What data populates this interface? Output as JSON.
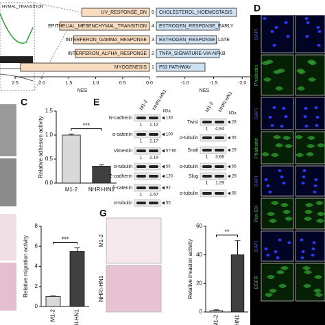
{
  "gsea": {
    "title": "HYMAL_TRANSITION"
  },
  "nes_chart": {
    "ranks": [
      5,
      4,
      3,
      2,
      1
    ],
    "left": {
      "axis_label": "NES",
      "categories": [
        "UV_RESPONSE_DN",
        "EPITHELIAL_MESENCHYMAL_TRANSITION",
        "INTERFERON_GAMMA_RESPONSE",
        "INTERFERON_ALPHA_RESPONSE",
        "MYOGENESIS"
      ],
      "values": [
        1.26,
        1.67,
        1.41,
        1.38,
        2.4
      ],
      "color": "#f9dcc0",
      "xlim": [
        2.5,
        0
      ],
      "xticks": [
        2.5,
        {
          "value": 2,
          "label": "2.0"
        },
        1.5,
        {
          "value": 1,
          "label": "1.0"
        },
        0.5,
        {
          "value": 0,
          "label": "0.0"
        }
      ]
    },
    "right": {
      "axis_label": "NES",
      "categories": [
        "CHOLESTEROL_HOEMOSTASIS",
        "ESTROGEN_RESPONSE_EARLY",
        "ESTROGEN_RESPONSE_LATE",
        "TNFA_SIGNATURE-VIA-NFKB",
        "P53 PATHWAY"
      ],
      "values": [
        -1.9,
        -1.6,
        -1.55,
        -1.6,
        -1.35
      ],
      "color": "#cfe2f3",
      "xlim": [
        -0.5,
        -2.2
      ],
      "xticks": [
        {
          "value": -1,
          "label": "-1.0"
        },
        -1.5,
        {
          "value": -2,
          "label": "-2.0"
        }
      ]
    }
  },
  "panel_labels": {
    "c": "C",
    "d": "D",
    "e": "E",
    "g": "G"
  },
  "adhesion_chart": {
    "y_label": "Relative adhesion activity",
    "categories": [
      "M1-2",
      "NHRI-HN1"
    ],
    "values": [
      1.0,
      0.35
    ],
    "errors": [
      0.02,
      0.03
    ],
    "colors": [
      "#d9d9d9",
      "#404040"
    ],
    "significance": "***",
    "ylim": [
      0,
      1.5
    ],
    "yticks": [
      {
        "value": 0,
        "label": "0.0"
      },
      0.5,
      {
        "value": 1,
        "label": "1.0"
      },
      1.5
    ]
  },
  "migration_chart": {
    "y_label": "Relative migration activity",
    "categories": [
      "M1-2",
      "NHRI-HN1"
    ],
    "values": [
      1,
      5.5
    ],
    "errors": [
      0.05,
      0.35
    ],
    "colors": [
      "#d9d9d9",
      "#404040"
    ],
    "significance": "***",
    "ylim": [
      0,
      8
    ],
    "yticks": [
      0,
      2,
      4,
      6,
      8
    ]
  },
  "invasion_chart": {
    "y_label": "Relative invasion activity",
    "categories": [
      "M1-2",
      "NHRI-HN1"
    ],
    "values": [
      1,
      40
    ],
    "errors": [
      0.5,
      10
    ],
    "colors": [
      "#d9d9d9",
      "#404040"
    ],
    "significance": "**",
    "ylim": [
      0,
      60
    ],
    "yticks": [
      0,
      20,
      40,
      60
    ]
  },
  "blot_left": {
    "lanes": [
      "M1-2",
      "NHRI-HN1"
    ],
    "unit": "kDa",
    "rows": [
      {
        "name": "N-cadherin",
        "kda": 130,
        "quant": [
          1,
          1.12
        ]
      },
      {
        "name": "α-catenin",
        "kda": 100,
        "quant": [
          1,
          2.17
        ]
      },
      {
        "name": "Vimentin",
        "kda": "57-60",
        "quant": [
          1,
          2.19
        ]
      },
      {
        "name": "α-tubulin",
        "kda": 55
      },
      {
        "name": "E-cadherin",
        "kda": 120
      },
      {
        "name": "β-catenin",
        "kda": 92,
        "quant": [
          1,
          1.67
        ]
      },
      {
        "name": "α-tubulin",
        "kda": 55
      }
    ]
  },
  "blot_right": {
    "lanes": [
      "M1-2",
      "NHRI-HN1"
    ],
    "unit": "kDa",
    "rows": [
      {
        "name": "Twist",
        "kda": 28,
        "quant": [
          1,
          4.84
        ]
      },
      {
        "name": "α-tubulin",
        "kda": 55
      },
      {
        "name": "Snail",
        "kda": 29,
        "quant": [
          1,
          3.68
        ]
      },
      {
        "name": "α-tubulin",
        "kda": 55
      },
      {
        "name": "Slug",
        "kda": 29,
        "quant": [
          1,
          1.29
        ]
      },
      {
        "name": "α-tubulin",
        "kda": 55
      }
    ]
  },
  "invasion_images": [
    "M1-2",
    "NHRI-HN1"
  ],
  "stain_labels": [
    "DAPI",
    "Phalloidin",
    "DAPI",
    "Phalloidin",
    "DAPI",
    "Pan-CK",
    "DAPI",
    "EGFR"
  ]
}
